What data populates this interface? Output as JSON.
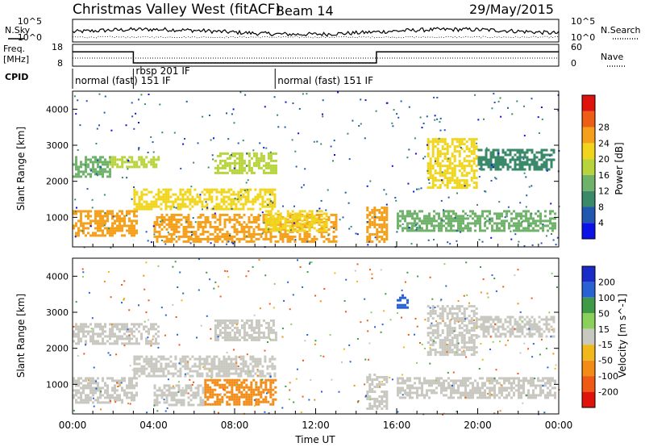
{
  "header": {
    "title": "Christmas Valley West (fitACF)",
    "beam": "Beam 14",
    "date": "29/May/2015"
  },
  "side_labels": {
    "nsky": "N.Sky",
    "freq": "Freq.",
    "freq_unit": "[MHz]",
    "cpid": "CPID",
    "nsearch": "N.Search",
    "nave": "Nave"
  },
  "noise_panel": {
    "left_ticks": [
      "10^5",
      "10^0"
    ],
    "right_ticks": [
      "10^5",
      "10^0"
    ]
  },
  "freq_panel": {
    "left_ticks": [
      "18",
      "8"
    ],
    "right_ticks": [
      "60",
      "0"
    ],
    "freq_segments": [
      {
        "start_hour": 0.0,
        "end_hour": 3.0,
        "freq_mhz": 14.6
      },
      {
        "start_hour": 3.0,
        "end_hour": 15.0,
        "freq_mhz": 9.5
      },
      {
        "start_hour": 15.0,
        "end_hour": 24.0,
        "freq_mhz": 14.6
      }
    ]
  },
  "cpid": [
    {
      "label": "normal (fast) 151 IF",
      "start_hour": 0.0
    },
    {
      "label": "rbsp 201 IF",
      "start_hour": 3.0
    },
    {
      "label": "normal (fast) 151 IF",
      "start_hour": 10.0
    }
  ],
  "x_axis": {
    "label": "Time UT",
    "ticks": [
      "00:00",
      "04:00",
      "08:00",
      "12:00",
      "16:00",
      "20:00",
      "00:00"
    ]
  },
  "power_colorbar": {
    "label": "Power [dB]",
    "ticks": [
      "4",
      "8",
      "12",
      "16",
      "20",
      "24",
      "28"
    ],
    "colors": [
      "#0b12e6",
      "#2058b0",
      "#3a8a6a",
      "#6fb36b",
      "#b7d43c",
      "#f0d51c",
      "#f5a01a",
      "#ee5d14",
      "#e0120c"
    ]
  },
  "velocity_colorbar": {
    "label": "Velocity [m s^-1]",
    "ticks": [
      "200",
      "100",
      "50",
      "15",
      "-15",
      "-50",
      "-100",
      "-200"
    ],
    "colors": [
      "#1a2cc8",
      "#2a62d4",
      "#3f9a46",
      "#8bd05a",
      "#c8c8c0",
      "#f0b91b",
      "#f38b17",
      "#ee5a14",
      "#df130c"
    ]
  },
  "chart_data": [
    {
      "type": "heatmap",
      "ylabel": "Slant Range [km]",
      "xlabel": "",
      "xlim": [
        0,
        24
      ],
      "ylim": [
        180,
        4500
      ],
      "y_ticks": [
        "1000",
        "2000",
        "3000",
        "4000"
      ],
      "quantity": "Power [dB]",
      "regions": [
        {
          "t0": 0.0,
          "t1": 3.2,
          "r0": 500,
          "r1": 1200,
          "level": 25
        },
        {
          "t0": 0.0,
          "t1": 1.8,
          "r0": 2100,
          "r1": 2700,
          "level": 12
        },
        {
          "t0": 1.8,
          "t1": 4.2,
          "r0": 2400,
          "r1": 2700,
          "level": 18
        },
        {
          "t0": 3.0,
          "t1": 10.0,
          "r0": 1200,
          "r1": 1800,
          "level": 20
        },
        {
          "t0": 7.0,
          "t1": 10.0,
          "r0": 2200,
          "r1": 2800,
          "level": 17
        },
        {
          "t0": 4.0,
          "t1": 13.0,
          "r0": 350,
          "r1": 1100,
          "level": 26
        },
        {
          "t0": 9.5,
          "t1": 12.5,
          "r0": 600,
          "r1": 1200,
          "level": 22
        },
        {
          "t0": 14.5,
          "t1": 15.5,
          "r0": 300,
          "r1": 1300,
          "level": 24
        },
        {
          "t0": 17.5,
          "t1": 20.0,
          "r0": 1800,
          "r1": 3200,
          "level": 20
        },
        {
          "t0": 16.0,
          "t1": 23.8,
          "r0": 600,
          "r1": 1200,
          "level": 14
        },
        {
          "t0": 20.0,
          "t1": 23.8,
          "r0": 2300,
          "r1": 2900,
          "level": 11
        }
      ]
    },
    {
      "type": "heatmap",
      "ylabel": "Slant Range [km]",
      "xlabel": "Time UT",
      "xlim": [
        0,
        24
      ],
      "ylim": [
        180,
        4500
      ],
      "y_ticks": [
        "1000",
        "2000",
        "3000",
        "4000"
      ],
      "quantity": "Velocity [m s^-1]",
      "regions": [
        {
          "t0": 0.0,
          "t1": 3.2,
          "r0": 500,
          "r1": 1200,
          "level": 0
        },
        {
          "t0": 0.0,
          "t1": 4.2,
          "r0": 2100,
          "r1": 2700,
          "level": 0
        },
        {
          "t0": 3.0,
          "t1": 10.0,
          "r0": 1200,
          "r1": 1800,
          "level": 0
        },
        {
          "t0": 7.0,
          "t1": 10.0,
          "r0": 2200,
          "r1": 2800,
          "level": 0
        },
        {
          "t0": 6.5,
          "t1": 10.0,
          "r0": 450,
          "r1": 1150,
          "level": -70
        },
        {
          "t0": 4.0,
          "t1": 6.5,
          "r0": 400,
          "r1": 1000,
          "level": 0
        },
        {
          "t0": 14.5,
          "t1": 15.5,
          "r0": 300,
          "r1": 1300,
          "level": 0
        },
        {
          "t0": 17.5,
          "t1": 20.0,
          "r0": 1800,
          "r1": 3200,
          "level": 0
        },
        {
          "t0": 16.0,
          "t1": 23.8,
          "r0": 600,
          "r1": 1200,
          "level": 0
        },
        {
          "t0": 20.0,
          "t1": 23.8,
          "r0": 2300,
          "r1": 2900,
          "level": 0
        },
        {
          "t0": 16.0,
          "t1": 16.5,
          "r0": 3100,
          "r1": 3500,
          "level": 150
        }
      ]
    }
  ]
}
